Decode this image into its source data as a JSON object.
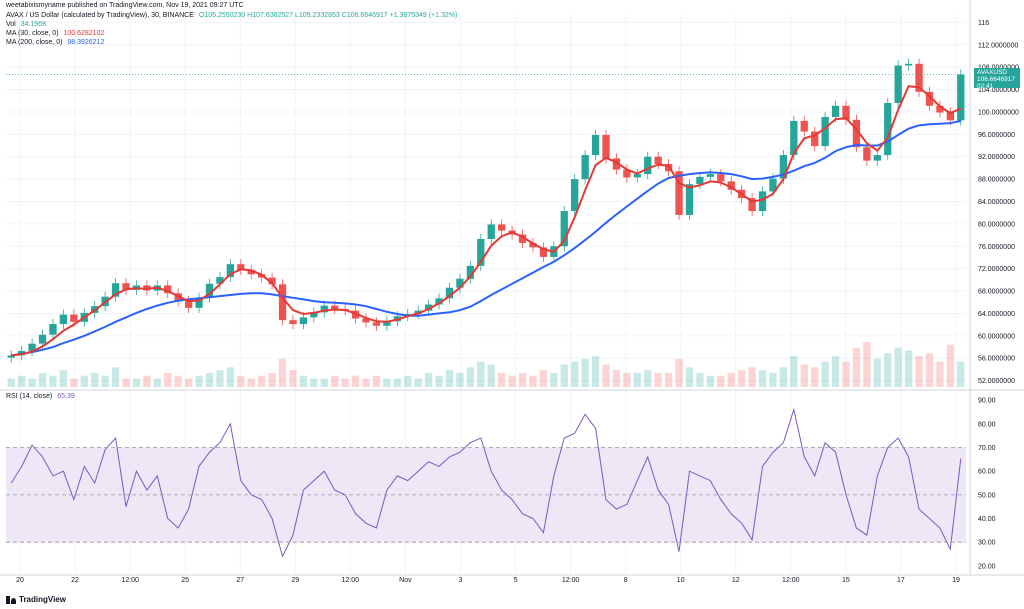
{
  "header": {
    "author_line": "weetabixismyname published on TradingView.com, Nov 19, 2021 09:27 UTC",
    "symbol_title": "AVAX / US Dollar (calculated by TradingView), 30, BINANCE",
    "ohlc": "O105.2550230 H107.6362527 L105.2332853 C106.6646917 +1.3875349 (+1.32%)",
    "vol_label": "Vol",
    "vol_value": "34.196K",
    "ma30_label": "MA (30, close, 0)",
    "ma30_value": "100.6282102",
    "ma200_label": "MA (200, close, 0)",
    "ma200_value": "98.3926212"
  },
  "rsi_header": {
    "label": "RSI (14, close)",
    "value": "65.39"
  },
  "price_tag": {
    "symbol": "AVAXUSD",
    "price": "106.6646917",
    "countdown": "02:41"
  },
  "brand": {
    "name": "TradingView"
  },
  "colors": {
    "up": "#26a69a",
    "down": "#ef5350",
    "ma30": "#e53935",
    "ma200": "#2962ff",
    "rsi": "#7e57c2",
    "rsi_band": "#ede7f6",
    "grid": "#f0f3fa",
    "axis_text": "#131722"
  },
  "chart_data": [
    {
      "type": "line",
      "title": "AVAX / US Dollar (calculated by TradingView), 30, BINANCE",
      "x_ticks": [
        "20",
        "22",
        "12:00",
        "25",
        "27",
        "29",
        "12:00",
        "Nov",
        "3",
        "5",
        "12:00",
        "8",
        "10",
        "12",
        "12:00",
        "15",
        "17",
        "19"
      ],
      "y_ticks": [
        116,
        112,
        108,
        104,
        100,
        96,
        92,
        88,
        84,
        80,
        76,
        72,
        68,
        64,
        60,
        56,
        52
      ],
      "y_tick_labels": [
        "116",
        "112.0000000",
        "108.0000000",
        "104.0000000",
        "100.0000000",
        "96.0000000",
        "92.0000000",
        "88.0000000",
        "84.0000000",
        "80.0000000",
        "76.0000000",
        "72.0000000",
        "68.0000000",
        "64.0000000",
        "60.0000000",
        "56.0000000",
        "52.0000000"
      ],
      "ylim": [
        50.5,
        117.5
      ],
      "grid": true,
      "series": [
        {
          "name": "Close",
          "values": [
            56.5,
            57.3,
            58.6,
            60.2,
            62.1,
            63.8,
            62.5,
            64.1,
            65.3,
            67.0,
            69.4,
            68.2,
            69.0,
            68.1,
            69.0,
            67.6,
            66.2,
            65.0,
            66.8,
            69.3,
            70.5,
            72.8,
            71.8,
            71.0,
            70.4,
            69.2,
            62.8,
            62.1,
            63.3,
            64.2,
            65.4,
            64.8,
            64.5,
            63.1,
            62.4,
            61.8,
            62.6,
            63.5,
            63.9,
            64.5,
            65.6,
            66.7,
            68.6,
            70.2,
            72.5,
            77.3,
            79.9,
            78.8,
            78.1,
            76.6,
            75.8,
            74.1,
            76.0,
            82.3,
            88.0,
            92.3,
            95.9,
            91.7,
            89.7,
            88.3,
            88.9,
            92.0,
            90.7,
            89.4,
            81.6,
            87.1,
            88.4,
            88.9,
            87.6,
            86.1,
            84.6,
            82.3,
            85.8,
            88.1,
            92.3,
            98.4,
            96.5,
            93.9,
            99.1,
            101.1,
            98.6,
            93.7,
            91.3,
            92.3,
            101.6,
            108.3,
            108.6,
            103.6,
            101.1,
            99.9,
            98.5,
            106.7
          ]
        },
        {
          "name": "MA (30, close, 0)",
          "values": [
            56.5,
            56.7,
            57.2,
            58.1,
            59.4,
            60.9,
            62.0,
            63.3,
            64.5,
            66.0,
            67.4,
            68.3,
            68.5,
            68.4,
            68.6,
            68.0,
            67.1,
            66.2,
            66.3,
            67.5,
            69.2,
            71.0,
            71.9,
            71.7,
            70.9,
            69.4,
            66.8,
            64.6,
            63.9,
            64.1,
            64.5,
            64.7,
            64.6,
            64.0,
            63.2,
            62.6,
            62.5,
            62.9,
            63.5,
            64.0,
            64.8,
            65.8,
            67.1,
            68.6,
            70.6,
            73.2,
            76.1,
            77.8,
            78.5,
            77.7,
            76.5,
            75.5,
            75.0,
            77.0,
            81.2,
            86.0,
            90.5,
            91.8,
            91.0,
            89.7,
            89.0,
            89.9,
            90.6,
            90.4,
            87.3,
            86.5,
            86.9,
            87.6,
            87.4,
            86.5,
            85.3,
            84.0,
            84.3,
            85.4,
            88.0,
            92.6,
            95.3,
            95.8,
            97.1,
            98.7,
            98.9,
            96.9,
            94.4,
            93.1,
            95.4,
            100.4,
            104.6,
            104.4,
            102.8,
            101.0,
            99.8,
            100.6
          ]
        },
        {
          "name": "MA (200, close, 0)",
          "values": [
            56.5,
            56.8,
            57.1,
            57.5,
            58.0,
            58.7,
            59.3,
            60.0,
            60.8,
            61.6,
            62.5,
            63.3,
            64.1,
            64.8,
            65.4,
            65.9,
            66.3,
            66.5,
            66.7,
            66.9,
            67.1,
            67.3,
            67.5,
            67.6,
            67.6,
            67.4,
            67.1,
            66.8,
            66.5,
            66.2,
            66.0,
            65.9,
            65.8,
            65.6,
            65.3,
            64.8,
            64.3,
            63.9,
            63.6,
            63.6,
            63.8,
            64.0,
            64.2,
            64.6,
            65.2,
            66.2,
            67.3,
            68.3,
            69.3,
            70.3,
            71.3,
            72.3,
            73.2,
            74.4,
            75.7,
            77.1,
            78.6,
            80.2,
            81.7,
            83.1,
            84.5,
            85.9,
            87.2,
            88.2,
            88.6,
            88.9,
            89.1,
            89.2,
            89.1,
            88.9,
            88.5,
            88.0,
            88.1,
            88.4,
            88.8,
            89.5,
            90.3,
            90.9,
            91.8,
            93.0,
            93.7,
            94.1,
            94.0,
            94.0,
            94.7,
            95.9,
            97.0,
            97.6,
            97.8,
            97.9,
            98.0,
            98.4
          ]
        }
      ],
      "current_price": 106.6646917
    },
    {
      "type": "bar",
      "title": "Vol",
      "values": [
        0.3,
        0.4,
        0.3,
        0.5,
        0.4,
        0.6,
        0.3,
        0.4,
        0.5,
        0.4,
        0.7,
        0.3,
        0.3,
        0.4,
        0.3,
        0.5,
        0.4,
        0.3,
        0.4,
        0.5,
        0.6,
        0.7,
        0.4,
        0.3,
        0.4,
        0.5,
        1.0,
        0.6,
        0.4,
        0.3,
        0.3,
        0.4,
        0.3,
        0.4,
        0.3,
        0.4,
        0.3,
        0.3,
        0.4,
        0.3,
        0.5,
        0.4,
        0.6,
        0.5,
        0.7,
        0.9,
        0.8,
        0.5,
        0.4,
        0.5,
        0.4,
        0.6,
        0.5,
        0.8,
        0.9,
        1.0,
        1.1,
        0.8,
        0.6,
        0.5,
        0.5,
        0.6,
        0.5,
        0.5,
        1.0,
        0.7,
        0.5,
        0.4,
        0.4,
        0.5,
        0.6,
        0.7,
        0.6,
        0.5,
        0.7,
        1.1,
        0.8,
        0.7,
        0.9,
        1.1,
        0.9,
        1.4,
        1.6,
        1.0,
        1.2,
        1.4,
        1.3,
        1.1,
        1.2,
        0.9,
        1.5,
        0.9
      ],
      "ylim": [
        0,
        3.2
      ]
    },
    {
      "type": "line",
      "title": "RSI (14, close)",
      "y_ticks": [
        90,
        80,
        70,
        60,
        50,
        40,
        30,
        20
      ],
      "y_tick_labels": [
        "90.00",
        "80.00",
        "70.00",
        "60.00",
        "50.00",
        "40.00",
        "30.00",
        "20.00"
      ],
      "ylim": [
        17,
        93
      ],
      "bands": [
        30,
        50,
        70
      ],
      "series": [
        {
          "name": "RSI",
          "values": [
            55,
            62,
            71,
            66,
            58,
            60,
            48,
            62,
            55,
            69,
            74,
            45,
            60,
            52,
            58,
            40,
            36,
            44,
            62,
            68,
            72,
            80,
            56,
            50,
            48,
            40,
            24,
            33,
            52,
            56,
            60,
            52,
            50,
            42,
            38,
            36,
            52,
            58,
            56,
            60,
            64,
            62,
            66,
            68,
            72,
            74,
            60,
            52,
            48,
            42,
            40,
            34,
            58,
            74,
            76,
            84,
            78,
            48,
            44,
            46,
            56,
            66,
            52,
            46,
            26,
            60,
            58,
            56,
            48,
            42,
            38,
            31,
            62,
            68,
            72,
            86,
            66,
            58,
            72,
            68,
            50,
            36,
            33,
            58,
            70,
            74,
            66,
            44,
            40,
            36,
            27,
            65.39
          ]
        }
      ]
    }
  ]
}
